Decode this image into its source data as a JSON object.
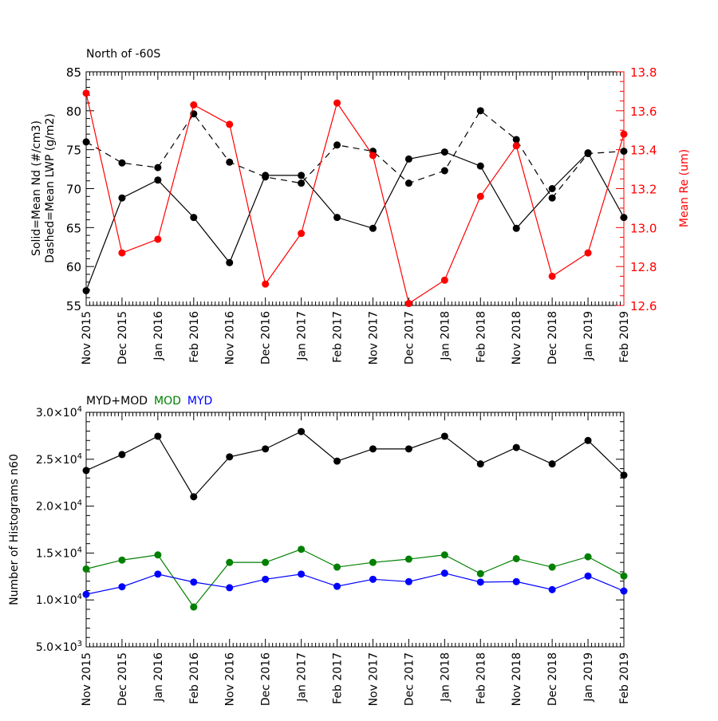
{
  "chart_data": [
    {
      "type": "line",
      "title": "North of -60S",
      "categories": [
        "Nov 2015",
        "Dec 2015",
        "Jan 2016",
        "Feb 2016",
        "Nov 2016",
        "Dec 2016",
        "Jan 2017",
        "Feb 2017",
        "Nov 2017",
        "Dec 2017",
        "Jan 2018",
        "Feb 2018",
        "Nov 2018",
        "Dec 2018",
        "Jan 2019",
        "Feb 2019"
      ],
      "ylabel_line1": "Solid=Mean Nd (#/cm3)",
      "ylabel_line2": "Dashed=Mean LWP (g/m2)",
      "ylim": [
        55,
        85
      ],
      "yticks": [
        "55",
        "60",
        "65",
        "70",
        "75",
        "80",
        "85"
      ],
      "y2label": "Mean Re (um)",
      "y2lim": [
        12.6,
        13.8
      ],
      "y2ticks": [
        "12.6",
        "12.8",
        "13.0",
        "13.2",
        "13.4",
        "13.6",
        "13.8"
      ],
      "series": [
        {
          "name": "Mean Nd",
          "axis": "left",
          "style": "solid",
          "color": "#000000",
          "values": [
            56.9,
            68.8,
            71.1,
            66.3,
            60.5,
            71.7,
            71.7,
            66.3,
            64.9,
            73.8,
            74.7,
            72.9,
            64.9,
            70.0,
            74.6,
            66.3
          ]
        },
        {
          "name": "Mean LWP",
          "axis": "left",
          "style": "dashed",
          "color": "#000000",
          "values": [
            76.0,
            73.3,
            72.7,
            79.6,
            73.4,
            71.5,
            70.7,
            75.6,
            74.8,
            70.7,
            72.3,
            80.0,
            76.3,
            68.8,
            74.5,
            74.8
          ]
        },
        {
          "name": "Mean Re",
          "axis": "right",
          "style": "solid",
          "color": "#ff0000",
          "values": [
            13.69,
            12.87,
            12.94,
            13.63,
            13.53,
            12.71,
            12.97,
            13.64,
            13.37,
            12.61,
            12.73,
            13.16,
            13.42,
            12.75,
            12.87,
            13.48
          ]
        }
      ]
    },
    {
      "type": "line",
      "legend": [
        {
          "label": "MYD+MOD",
          "color": "#000000"
        },
        {
          "label": "MOD",
          "color": "#008000"
        },
        {
          "label": "MYD",
          "color": "#0000ff"
        }
      ],
      "categories": [
        "Nov 2015",
        "Dec 2015",
        "Jan 2016",
        "Feb 2016",
        "Nov 2016",
        "Dec 2016",
        "Jan 2017",
        "Feb 2017",
        "Nov 2017",
        "Dec 2017",
        "Jan 2018",
        "Feb 2018",
        "Nov 2018",
        "Dec 2018",
        "Jan 2019",
        "Feb 2019"
      ],
      "ylabel": "Number of Histograms n60",
      "ylim": [
        5000,
        30000
      ],
      "yticks": [
        {
          "mantissa": "5.0",
          "exp": "3",
          "value": 5000
        },
        {
          "mantissa": "1.0",
          "exp": "4",
          "value": 10000
        },
        {
          "mantissa": "1.5",
          "exp": "4",
          "value": 15000
        },
        {
          "mantissa": "2.0",
          "exp": "4",
          "value": 20000
        },
        {
          "mantissa": "2.5",
          "exp": "4",
          "value": 25000
        },
        {
          "mantissa": "3.0",
          "exp": "4",
          "value": 30000
        }
      ],
      "series": [
        {
          "name": "MYD+MOD",
          "color": "#000000",
          "values": [
            23800,
            25500,
            27450,
            21000,
            25250,
            26100,
            27950,
            24800,
            26100,
            26100,
            27450,
            24500,
            26250,
            24500,
            27000,
            23300
          ]
        },
        {
          "name": "MOD",
          "color": "#008000",
          "values": [
            13300,
            14250,
            14800,
            9250,
            14000,
            14000,
            15400,
            13500,
            14000,
            14350,
            14800,
            12800,
            14400,
            13500,
            14600,
            12550
          ]
        },
        {
          "name": "MYD",
          "color": "#0000ff",
          "values": [
            10600,
            11400,
            12750,
            11900,
            11300,
            12200,
            12750,
            11450,
            12200,
            11950,
            12850,
            11900,
            11950,
            11100,
            12550,
            10950
          ]
        }
      ]
    }
  ]
}
